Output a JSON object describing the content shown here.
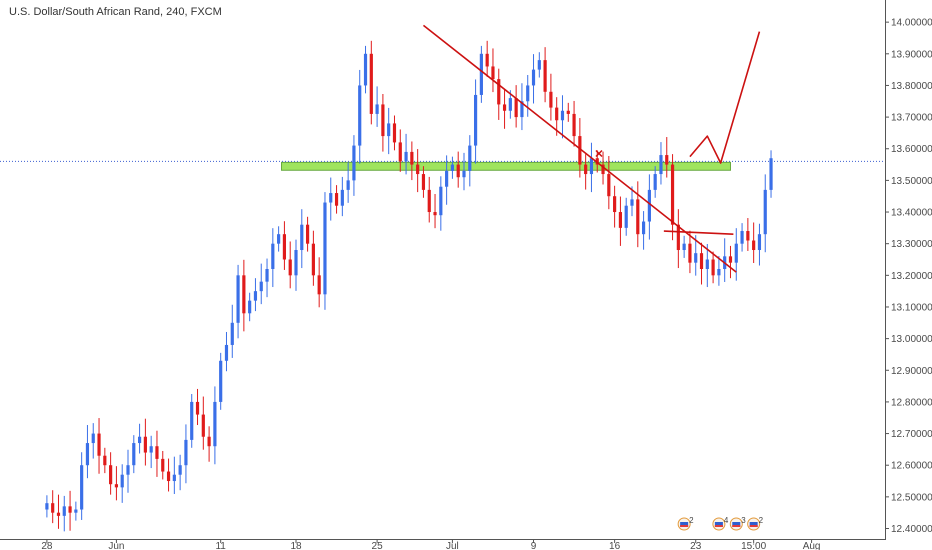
{
  "title": "U.S. Dollar/South African Rand, 240, FXCM",
  "colors": {
    "up": "#3a6fe8",
    "down": "#e01b1b",
    "line": "#cc1111",
    "zone": "#8fe043",
    "zone_border": "#4b9a1c",
    "price_line": "#3d5fd1",
    "axis": "#555555"
  },
  "chart_data": {
    "type": "candlestick",
    "ylim": [
      12.37,
      14.07
    ],
    "x_range": [
      0,
      145
    ],
    "yticks": [
      {
        "value": 14.0,
        "label": "14.00000"
      },
      {
        "value": 13.9,
        "label": "13.90000"
      },
      {
        "value": 13.8,
        "label": "13.80000"
      },
      {
        "value": 13.7,
        "label": "13.70000"
      },
      {
        "value": 13.6,
        "label": "13.60000"
      },
      {
        "value": 13.5,
        "label": "13.50000"
      },
      {
        "value": 13.4,
        "label": "13.40000"
      },
      {
        "value": 13.3,
        "label": "13.30000"
      },
      {
        "value": 13.2,
        "label": "13.20000"
      },
      {
        "value": 13.1,
        "label": "13.10000"
      },
      {
        "value": 13.0,
        "label": "13.00000"
      },
      {
        "value": 12.9,
        "label": "12.90000"
      },
      {
        "value": 12.8,
        "label": "12.80000"
      },
      {
        "value": 12.7,
        "label": "12.70000"
      },
      {
        "value": 12.6,
        "label": "12.60000"
      },
      {
        "value": 12.5,
        "label": "12.50000"
      },
      {
        "value": 12.4,
        "label": "12.40000"
      }
    ],
    "xticks": [
      {
        "index": 0.5,
        "label": "28"
      },
      {
        "index": 12.5,
        "label": "Jun"
      },
      {
        "index": 30.5,
        "label": "11"
      },
      {
        "index": 43.5,
        "label": "18"
      },
      {
        "index": 57.5,
        "label": "25"
      },
      {
        "index": 70.5,
        "label": "Jul"
      },
      {
        "index": 84.5,
        "label": "9"
      },
      {
        "index": 98.5,
        "label": "16"
      },
      {
        "index": 112.5,
        "label": "23"
      },
      {
        "index": 122.5,
        "label": "15:00"
      },
      {
        "index": 132.5,
        "label": "Aug"
      }
    ],
    "price_line": 13.56,
    "zone": {
      "x0": 41.0,
      "x1": 118.5,
      "y0": 13.532,
      "y1": 13.557
    },
    "lines": [
      {
        "name": "trendline",
        "points": [
          [
            65.5,
            13.99
          ],
          [
            119.5,
            13.21
          ]
        ]
      },
      {
        "name": "horizontal-line",
        "points": [
          [
            107.0,
            13.34
          ],
          [
            119.0,
            13.33
          ]
        ]
      },
      {
        "name": "projection",
        "points": [
          [
            111.5,
            13.575
          ],
          [
            114.5,
            13.64
          ],
          [
            116.8,
            13.555
          ],
          [
            123.5,
            13.97
          ]
        ]
      }
    ],
    "marker": {
      "index": 95.8,
      "value": 13.585
    },
    "events": [
      {
        "index": 110.5,
        "label": "2"
      },
      {
        "index": 116.5,
        "label": "4"
      },
      {
        "index": 119.5,
        "label": "3"
      },
      {
        "index": 122.5,
        "label": "2"
      }
    ],
    "closes": [
      12.48,
      12.45,
      12.44,
      12.47,
      12.45,
      12.46,
      12.6,
      12.67,
      12.7,
      12.63,
      12.6,
      12.54,
      12.53,
      12.57,
      12.6,
      12.67,
      12.69,
      12.64,
      12.66,
      12.62,
      12.58,
      12.55,
      12.57,
      12.6,
      12.68,
      12.8,
      12.76,
      12.69,
      12.66,
      12.8,
      12.93,
      12.98,
      13.05,
      13.2,
      13.08,
      13.12,
      13.15,
      13.18,
      13.22,
      13.3,
      13.33,
      13.25,
      13.2,
      13.28,
      13.36,
      13.3,
      13.2,
      13.14,
      13.43,
      13.46,
      13.42,
      13.47,
      13.5,
      13.61,
      13.8,
      13.9,
      13.71,
      13.74,
      13.64,
      13.68,
      13.62,
      13.56,
      13.59,
      13.55,
      13.52,
      13.47,
      13.4,
      13.39,
      13.48,
      13.53,
      13.55,
      13.51,
      13.53,
      13.61,
      13.77,
      13.9,
      13.86,
      13.82,
      13.74,
      13.72,
      13.76,
      13.7,
      13.75,
      13.8,
      13.85,
      13.88,
      13.78,
      13.73,
      13.69,
      13.72,
      13.71,
      13.64,
      13.55,
      13.52,
      13.57,
      13.55,
      13.52,
      13.45,
      13.4,
      13.35,
      13.42,
      13.44,
      13.33,
      13.37,
      13.47,
      13.52,
      13.58,
      13.55,
      13.36,
      13.28,
      13.3,
      13.24,
      13.27,
      13.22,
      13.25,
      13.2,
      13.22,
      13.26,
      13.24,
      13.3,
      13.34,
      13.31,
      13.28,
      13.33,
      13.47,
      13.57
    ]
  }
}
